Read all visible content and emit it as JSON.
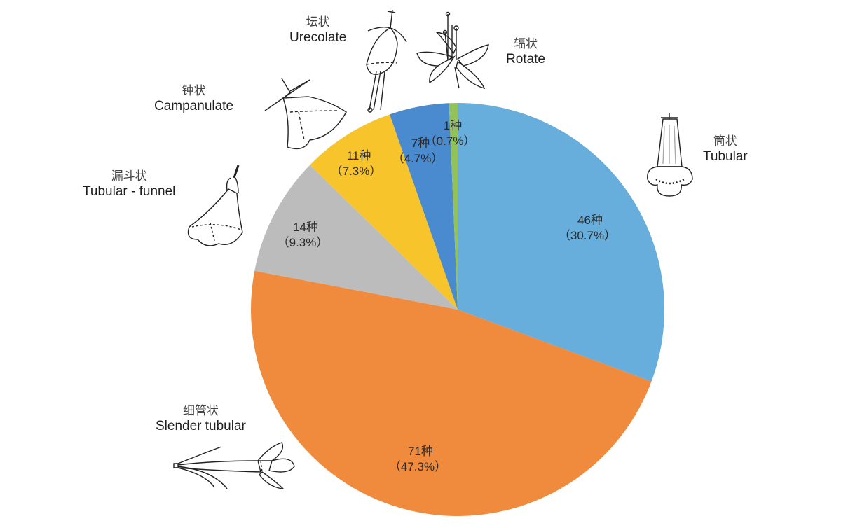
{
  "chart_data": {
    "type": "pie",
    "title": "",
    "unit": "种",
    "start_angle_deg": 0,
    "direction": "clockwise",
    "total": 150,
    "slices": [
      {
        "key": "tubular",
        "label_zh": "筒状",
        "label_en": "Tubular",
        "count": 46,
        "percent": 30.7,
        "value_text": "46种",
        "percent_text": "（30.7%）",
        "color": "#67aedc"
      },
      {
        "key": "slender_tubular",
        "label_zh": "细管状",
        "label_en": "Slender tubular",
        "count": 71,
        "percent": 47.3,
        "value_text": "71种",
        "percent_text": "（47.3%）",
        "color": "#f08a3c"
      },
      {
        "key": "tubular_funnel",
        "label_zh": "漏斗状",
        "label_en": "Tubular - funnel",
        "count": 14,
        "percent": 9.3,
        "value_text": "14种",
        "percent_text": "（9.3%）",
        "color": "#bcbcbd"
      },
      {
        "key": "campanulate",
        "label_zh": "钟状",
        "label_en": "Campanulate",
        "count": 11,
        "percent": 7.3,
        "value_text": "11种",
        "percent_text": "（7.3%）",
        "color": "#f8c42c"
      },
      {
        "key": "urecolate",
        "label_zh": "坛状",
        "label_en": "Urecolate",
        "count": 7,
        "percent": 4.7,
        "value_text": "7种",
        "percent_text": "（4.7%）",
        "color": "#4a8bcf"
      },
      {
        "key": "rotate",
        "label_zh": "辐状",
        "label_en": "Rotate",
        "count": 1,
        "percent": 0.7,
        "value_text": "1种",
        "percent_text": "（0.7%）",
        "color": "#93c15a"
      }
    ],
    "legend": "none",
    "annotations": "category names with flower-shape illustrations placed around the pie"
  },
  "labels": {
    "tubular": {
      "zh": "筒状",
      "en": "Tubular"
    },
    "slender_tubular": {
      "zh": "细管状",
      "en": "Slender tubular"
    },
    "tubular_funnel": {
      "zh": "漏斗状",
      "en": "Tubular - funnel"
    },
    "campanulate": {
      "zh": "钟状",
      "en": "Campanulate"
    },
    "urecolate": {
      "zh": "坛状",
      "en": "Urecolate"
    },
    "rotate": {
      "zh": "辐状",
      "en": "Rotate"
    }
  },
  "icons": {
    "tubular": "tubular-flower-icon",
    "slender_tubular": "slender-tubular-flower-icon",
    "tubular_funnel": "funnel-flower-icon",
    "campanulate": "campanulate-flower-icon",
    "urecolate": "urecolate-flower-icon",
    "rotate": "rotate-flower-icon"
  }
}
